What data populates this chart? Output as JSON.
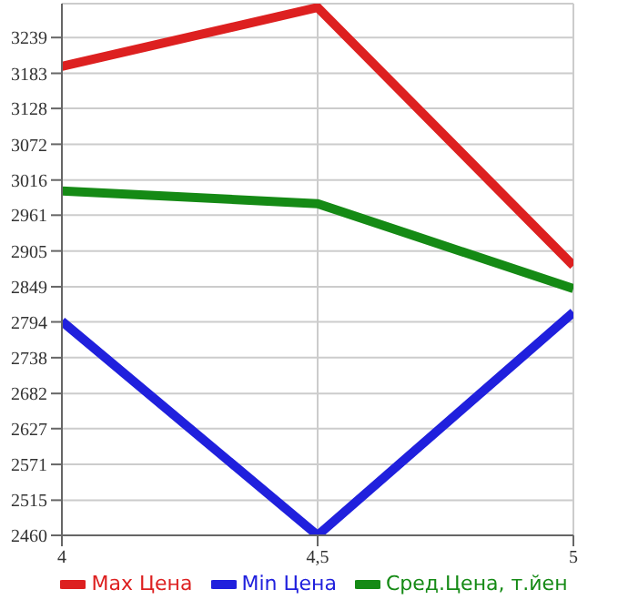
{
  "chart_data": {
    "type": "line",
    "x": [
      4,
      4.5,
      5
    ],
    "series": [
      {
        "name": "Max Цена",
        "color": "#dd2020",
        "values": [
          3194,
          3286,
          2882
        ]
      },
      {
        "name": "Min Цена",
        "color": "#2020dd",
        "values": [
          2795,
          2460,
          2809
        ]
      },
      {
        "name": "Сред.Цена, т.йен",
        "color": "#158a15",
        "values": [
          2999,
          2979,
          2846
        ]
      }
    ],
    "xlim": [
      4,
      5
    ],
    "xticks": [
      4,
      {
        "value": 4.5,
        "label": "4,5"
      },
      5
    ],
    "ylim": [
      2460,
      3292
    ],
    "yticks": [
      2460,
      2515,
      2571,
      2627,
      2682,
      2738,
      2794,
      2849,
      2905,
      2961,
      3016,
      3072,
      3128,
      3183,
      3239
    ],
    "grid": true,
    "legend": "bottom",
    "marker": "none",
    "line_style": "solid"
  }
}
